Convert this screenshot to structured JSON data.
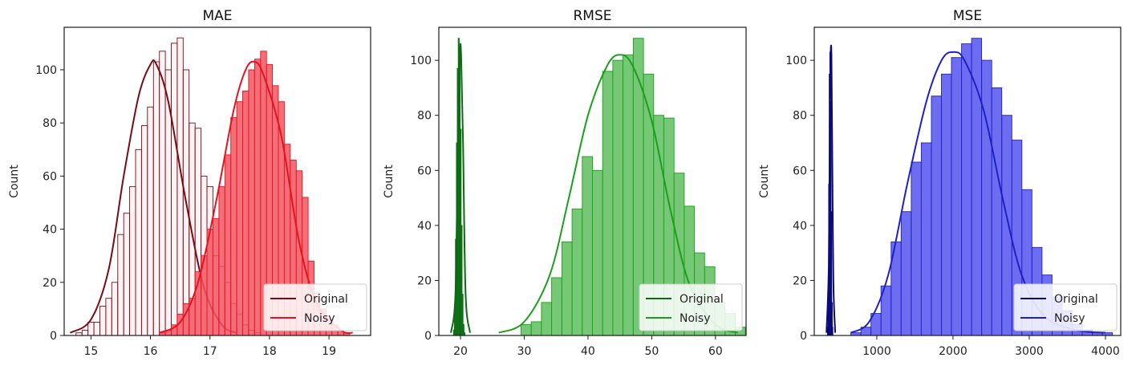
{
  "chart_data": [
    {
      "type": "bar",
      "title": "MAE",
      "xlabel": "",
      "ylabel": "Count",
      "xlim": [
        14.55,
        19.7
      ],
      "ylim": [
        0,
        116
      ],
      "xticks": [
        15,
        16,
        17,
        18,
        19
      ],
      "yticks": [
        0,
        20,
        40,
        60,
        80,
        100
      ],
      "grid": false,
      "legend_position": "bottom-right",
      "series": [
        {
          "name": "Original",
          "color": "#7a0a14",
          "fill": "#fbe3e6",
          "fill_opacity": 0.45,
          "bin_start": 14.75,
          "bin_width": 0.1,
          "counts": [
            1,
            2,
            5,
            5,
            11,
            14,
            20,
            38,
            46,
            56,
            70,
            79,
            86,
            103,
            107,
            100,
            110,
            112,
            100,
            80,
            78,
            60,
            56,
            30,
            26,
            20,
            12,
            8,
            4,
            2,
            1
          ],
          "kde_x": [
            14.65,
            15.0,
            15.3,
            15.55,
            15.8,
            16.0,
            16.1,
            16.3,
            16.6,
            16.9,
            17.2,
            17.45
          ],
          "kde_y": [
            1,
            6,
            25,
            60,
            90,
            102,
            102,
            88,
            50,
            18,
            4,
            1
          ]
        },
        {
          "name": "Noisy",
          "color": "#e8121f",
          "fill": "#f25560",
          "fill_opacity": 0.85,
          "bin_start": 16.15,
          "bin_width": 0.1,
          "counts": [
            1,
            2,
            4,
            8,
            12,
            14,
            24,
            30,
            40,
            44,
            56,
            68,
            82,
            88,
            92,
            100,
            104,
            107,
            102,
            94,
            88,
            72,
            66,
            62,
            52,
            28,
            16,
            10,
            6,
            4,
            2,
            1
          ],
          "kde_x": [
            16.15,
            16.5,
            16.8,
            17.1,
            17.4,
            17.6,
            17.75,
            17.9,
            18.2,
            18.5,
            18.8,
            19.2,
            19.4
          ],
          "kde_y": [
            1,
            5,
            20,
            50,
            85,
            100,
            103,
            98,
            75,
            35,
            12,
            2,
            1
          ]
        }
      ],
      "legend": [
        "Original",
        "Noisy"
      ]
    },
    {
      "type": "bar",
      "title": "RMSE",
      "xlabel": "",
      "ylabel": "Count",
      "xlim": [
        16.6,
        64.8
      ],
      "ylim": [
        0,
        112
      ],
      "xticks": [
        20,
        30,
        40,
        50,
        60
      ],
      "yticks": [
        0,
        20,
        40,
        60,
        80,
        100
      ],
      "grid": false,
      "legend_position": "bottom-right",
      "series": [
        {
          "name": "Original",
          "color": "#0b6b12",
          "fill": "#0d7a16",
          "fill_opacity": 0.9,
          "bin_start": 18.9,
          "bin_width": 0.15,
          "counts": [
            2,
            10,
            35,
            70,
            97,
            108,
            100,
            75,
            40,
            15,
            4,
            1
          ],
          "kde_x": [
            18.5,
            19.2,
            19.6,
            19.9,
            20.1,
            20.4,
            20.8,
            21.5
          ],
          "kde_y": [
            1,
            15,
            70,
            102,
            102,
            70,
            15,
            1
          ]
        },
        {
          "name": "Noisy",
          "color": "#1aa01a",
          "fill": "#5ebd5e",
          "fill_opacity": 0.85,
          "bin_start": 29.5,
          "bin_width": 1.6,
          "counts": [
            4,
            5,
            12,
            21,
            34,
            46,
            65,
            60,
            96,
            100,
            102,
            108,
            95,
            80,
            79,
            59,
            47,
            30,
            25,
            12,
            8,
            3,
            2
          ],
          "kde_x": [
            26,
            30,
            34,
            37,
            40,
            43,
            45,
            47,
            50,
            53,
            56,
            60,
            63.5
          ],
          "kde_y": [
            1,
            5,
            22,
            50,
            80,
            98,
            102,
            98,
            78,
            45,
            18,
            4,
            1
          ]
        }
      ],
      "legend": [
        "Original",
        "Noisy"
      ]
    },
    {
      "type": "bar",
      "title": "MSE",
      "xlabel": "",
      "ylabel": "Count",
      "xlim": [
        180,
        4200
      ],
      "ylim": [
        0,
        112
      ],
      "xticks": [
        1000,
        2000,
        3000,
        4000
      ],
      "yticks": [
        0,
        20,
        40,
        60,
        80,
        100
      ],
      "grid": false,
      "legend_position": "bottom-right",
      "series": [
        {
          "name": "Original",
          "color": "#0a0a7a",
          "fill": "#0a0a82",
          "fill_opacity": 0.95,
          "bin_start": 352,
          "bin_width": 8,
          "counts": [
            3,
            15,
            55,
            95,
            103,
            85,
            45,
            12,
            3
          ],
          "kde_x": [
            340,
            370,
            385,
            395,
            405,
            415,
            430,
            455
          ],
          "kde_y": [
            1,
            25,
            80,
            102,
            102,
            70,
            20,
            1
          ]
        },
        {
          "name": "Noisy",
          "color": "#2020c8",
          "fill": "#5454f0",
          "fill_opacity": 0.85,
          "bin_start": 660,
          "bin_width": 132,
          "counts": [
            1,
            3,
            8,
            18,
            34,
            45,
            63,
            70,
            87,
            95,
            101,
            106,
            108,
            100,
            90,
            80,
            71,
            53,
            32,
            22,
            14,
            9,
            4,
            2,
            1,
            1
          ],
          "kde_x": [
            660,
            900,
            1150,
            1400,
            1650,
            1850,
            2000,
            2150,
            2400,
            2650,
            2900,
            3200,
            3600,
            4000
          ],
          "kde_y": [
            1,
            5,
            22,
            55,
            85,
            100,
            103,
            100,
            82,
            50,
            22,
            7,
            2,
            1
          ]
        }
      ],
      "legend": [
        "Original",
        "Noisy"
      ]
    }
  ]
}
